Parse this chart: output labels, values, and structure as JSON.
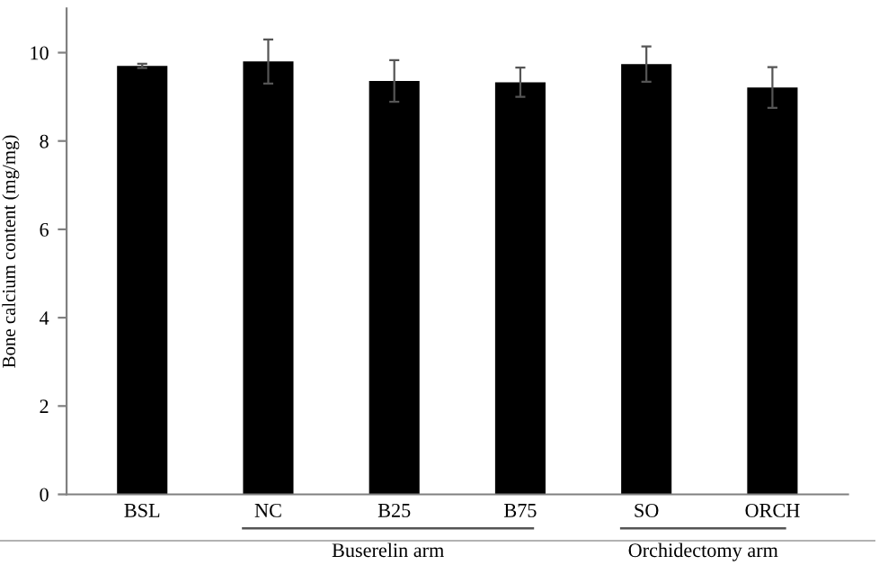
{
  "chart_data": {
    "type": "bar",
    "ylabel": "Bone calcium content (mg/mg)",
    "categories": [
      "BSL",
      "NC",
      "B25",
      "B75",
      "SO",
      "ORCH"
    ],
    "values": [
      9.7,
      9.8,
      9.36,
      9.33,
      9.74,
      9.21
    ],
    "errors": [
      0.05,
      0.5,
      0.47,
      0.33,
      0.4,
      0.46
    ],
    "color": "#000000",
    "ylim": [
      0,
      11
    ],
    "yticks": [
      0,
      2,
      4,
      6,
      8,
      10
    ],
    "grid": false,
    "annotations": [
      "Buserelin arm",
      "Orchidectomy arm"
    ]
  }
}
